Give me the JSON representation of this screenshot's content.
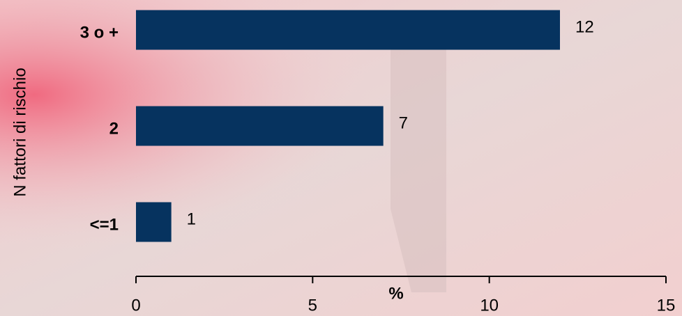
{
  "chart_data": {
    "type": "barh",
    "categories": [
      "3 o +",
      "2",
      "<=1"
    ],
    "values": [
      12,
      7,
      1
    ],
    "color": "#06335f",
    "xlabel": "%",
    "ylabel": "N fattori di rischio",
    "xlim": [
      0,
      15
    ],
    "xticks": [
      0,
      5,
      10,
      15
    ]
  }
}
